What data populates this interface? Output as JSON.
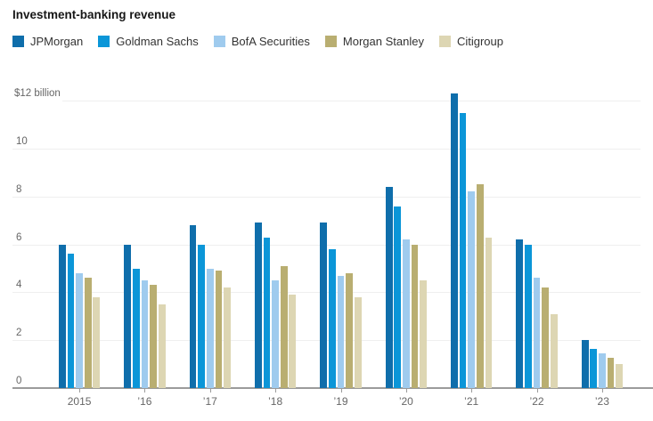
{
  "title": "Investment-banking revenue",
  "colors": {
    "jpmorgan": "#0f6eab",
    "goldman_sachs": "#0b96d8",
    "bofa_securities": "#9fcbee",
    "morgan_stanley": "#b9ae71",
    "citigroup": "#ddd6b3",
    "gridline": "#efefef",
    "axis": "#9b9b9b",
    "axis_text": "#666666",
    "title_text": "#171717"
  },
  "chart_data": {
    "type": "bar",
    "title": "Investment-banking revenue",
    "categories": [
      "2015",
      "’16",
      "’17",
      "’18",
      "’19",
      "’20",
      "’21",
      "’22",
      "’23"
    ],
    "series": [
      {
        "name": "JPMorgan",
        "color": "#0f6eab",
        "values": [
          6.0,
          6.0,
          6.8,
          6.9,
          6.9,
          8.4,
          12.3,
          6.2,
          2.0
        ]
      },
      {
        "name": "Goldman Sachs",
        "color": "#0b96d8",
        "values": [
          5.6,
          5.0,
          6.0,
          6.3,
          5.8,
          7.6,
          11.5,
          6.0,
          1.65
        ]
      },
      {
        "name": "BofA Securities",
        "color": "#9fcbee",
        "values": [
          4.8,
          4.5,
          5.0,
          4.5,
          4.7,
          6.2,
          8.2,
          4.6,
          1.45
        ]
      },
      {
        "name": "Morgan Stanley",
        "color": "#b9ae71",
        "values": [
          4.6,
          4.3,
          4.9,
          5.1,
          4.8,
          6.0,
          8.5,
          4.2,
          1.25
        ]
      },
      {
        "name": "Citigroup",
        "color": "#ddd6b3",
        "values": [
          3.8,
          3.5,
          4.2,
          3.9,
          3.8,
          4.5,
          6.3,
          3.1,
          1.0
        ]
      }
    ],
    "y_ticks": [
      0,
      2,
      4,
      6,
      8,
      10,
      12
    ],
    "y_tick_labels": [
      "0",
      "2",
      "4",
      "6",
      "8",
      "10",
      "$12 billion"
    ],
    "ylim": [
      0,
      12
    ],
    "unit": "billions of US dollars",
    "grid": true,
    "legend_position": "top"
  }
}
